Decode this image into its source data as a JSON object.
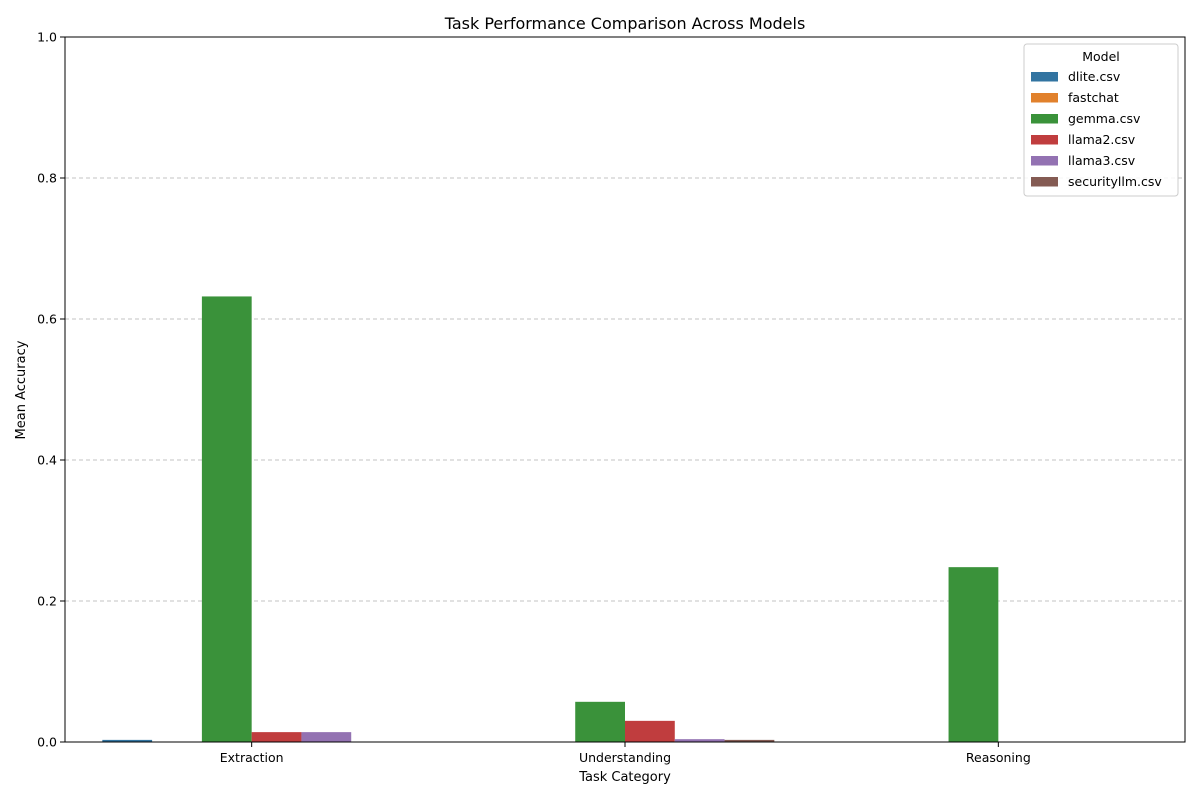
{
  "chart_data": {
    "type": "bar",
    "title": "Task Performance Comparison Across Models",
    "xlabel": "Task Category",
    "ylabel": "Mean Accuracy",
    "categories": [
      "Extraction",
      "Understanding",
      "Reasoning"
    ],
    "ylim": [
      0,
      1.0
    ],
    "yticks": [
      "0.0",
      "0.2",
      "0.4",
      "0.6",
      "0.8",
      "1.0"
    ],
    "grid": "horizontal dashed",
    "legend": {
      "title": "Model",
      "placement": "top-right"
    },
    "series": [
      {
        "name": "dlite.csv",
        "color": "#3274a1",
        "values": [
          0.003,
          0.0,
          0.0
        ]
      },
      {
        "name": "fastchat",
        "color": "#e1812c",
        "values": [
          0.0,
          0.0,
          0.0
        ]
      },
      {
        "name": "gemma.csv",
        "color": "#3a923a",
        "values": [
          0.632,
          0.057,
          0.248
        ]
      },
      {
        "name": "llama2.csv",
        "color": "#c03d3e",
        "values": [
          0.014,
          0.03,
          0.0
        ]
      },
      {
        "name": "llama3.csv",
        "color": "#9372b2",
        "values": [
          0.014,
          0.004,
          0.0
        ]
      },
      {
        "name": "securityllm.csv",
        "color": "#845b53",
        "values": [
          0.0,
          0.003,
          0.0
        ]
      }
    ]
  }
}
